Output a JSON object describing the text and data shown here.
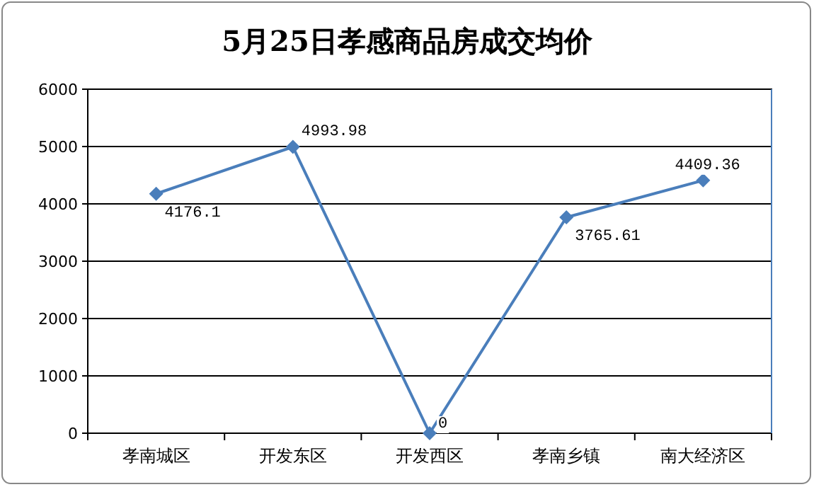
{
  "chart_data": {
    "type": "line",
    "title": "5月25日孝感商品房成交均价",
    "categories": [
      "孝南城区",
      "开发东区",
      "开发西区",
      "孝南乡镇",
      "南大经济区"
    ],
    "series": [
      {
        "color": "#4a7ebb",
        "values": [
          4176.1,
          4993.98,
          0,
          3765.61,
          4409.36
        ]
      }
    ],
    "ylim": [
      0,
      6000
    ],
    "yticks": [
      0,
      1000,
      2000,
      3000,
      4000,
      5000,
      6000
    ],
    "grid": "y",
    "marker": "diamond",
    "line_style": "solid",
    "data_labels": true
  }
}
